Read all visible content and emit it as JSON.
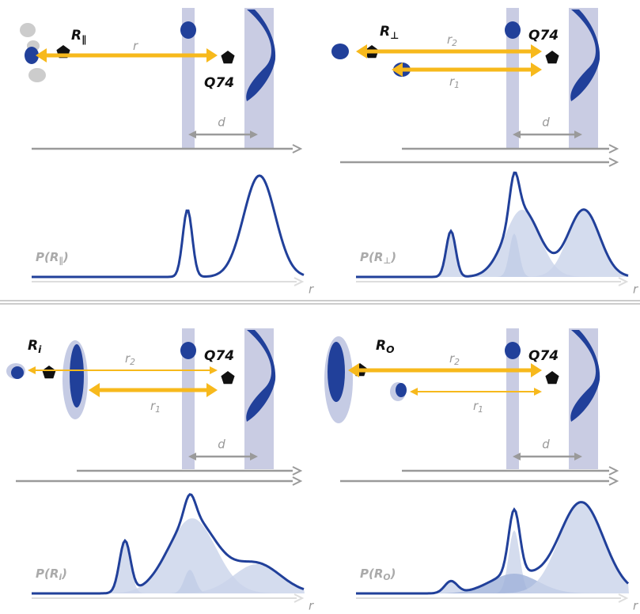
{
  "panels": [
    {
      "label": {
        "main": "R",
        "sub": "∥"
      },
      "distances": [
        {
          "main": "r"
        }
      ],
      "target": "Q74",
      "d": "d",
      "distribution": {
        "main": "P(R",
        "sub": "∥",
        "tail": ")"
      },
      "axis": "r"
    },
    {
      "label": {
        "main": "R",
        "sub": "⊥"
      },
      "distances": [
        {
          "main": "r",
          "sub": "2"
        },
        {
          "main": "r",
          "sub": "1"
        }
      ],
      "target": "Q74",
      "d": "d",
      "distribution": {
        "main": "P(R",
        "sub": "⊥",
        "tail": ")"
      },
      "axis": "r"
    },
    {
      "label": {
        "main": "R",
        "sub": "i"
      },
      "distances": [
        {
          "main": "r",
          "sub": "2"
        },
        {
          "main": "r",
          "sub": "1"
        }
      ],
      "target": "Q74",
      "d": "d",
      "distribution": {
        "main": "P(R",
        "sub": "i",
        "tail": ")"
      },
      "axis": "r"
    },
    {
      "label": {
        "main": "R",
        "sub": "O"
      },
      "distances": [
        {
          "main": "r",
          "sub": "2"
        },
        {
          "main": "r",
          "sub": "1"
        }
      ],
      "target": "Q74",
      "d": "d",
      "distribution": {
        "main": "P(R",
        "sub": "O",
        "tail": ")"
      },
      "axis": "r"
    }
  ]
}
